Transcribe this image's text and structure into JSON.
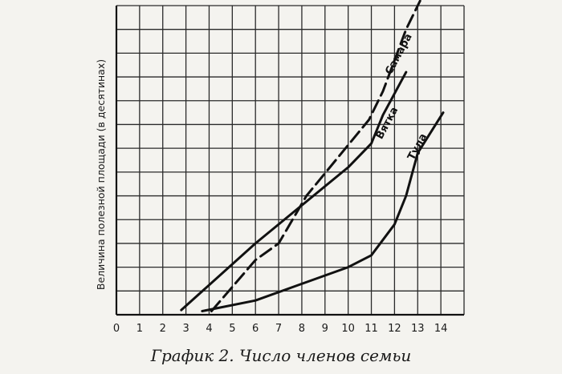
{
  "caption": "График 2. Число членов семьи",
  "chart_data": {
    "type": "line",
    "title": "",
    "xlabel": "",
    "ylabel": "Величина полезной площади (в десятинах)",
    "x_ticks": [
      0,
      1,
      2,
      3,
      4,
      5,
      6,
      7,
      8,
      9,
      10,
      11,
      12,
      13,
      14
    ],
    "xlim": [
      0,
      15
    ],
    "ylim": [
      0,
      13
    ],
    "grid": true,
    "series": [
      {
        "name": "Самара",
        "style": "dashed",
        "points": [
          [
            4.1,
            0.15
          ],
          [
            6,
            2.3
          ],
          [
            7,
            3
          ],
          [
            8.2,
            5
          ],
          [
            10.9,
            8.2
          ],
          [
            11.5,
            9.4
          ],
          [
            12.5,
            12
          ],
          [
            13.1,
            13.2
          ]
        ]
      },
      {
        "name": "Вятка",
        "style": "solid",
        "points": [
          [
            2.8,
            0.2
          ],
          [
            6,
            3
          ],
          [
            8,
            4.6
          ],
          [
            10,
            6.2
          ],
          [
            11,
            7.2
          ],
          [
            11.5,
            8.4
          ],
          [
            12.5,
            10.2
          ]
        ]
      },
      {
        "name": "Тула",
        "style": "solid",
        "points": [
          [
            3.7,
            0.15
          ],
          [
            6,
            0.6
          ],
          [
            8,
            1.3
          ],
          [
            10,
            2
          ],
          [
            11,
            2.5
          ],
          [
            12,
            3.8
          ],
          [
            12.5,
            5
          ],
          [
            13,
            6.8
          ],
          [
            14.1,
            8.5
          ]
        ]
      }
    ]
  }
}
